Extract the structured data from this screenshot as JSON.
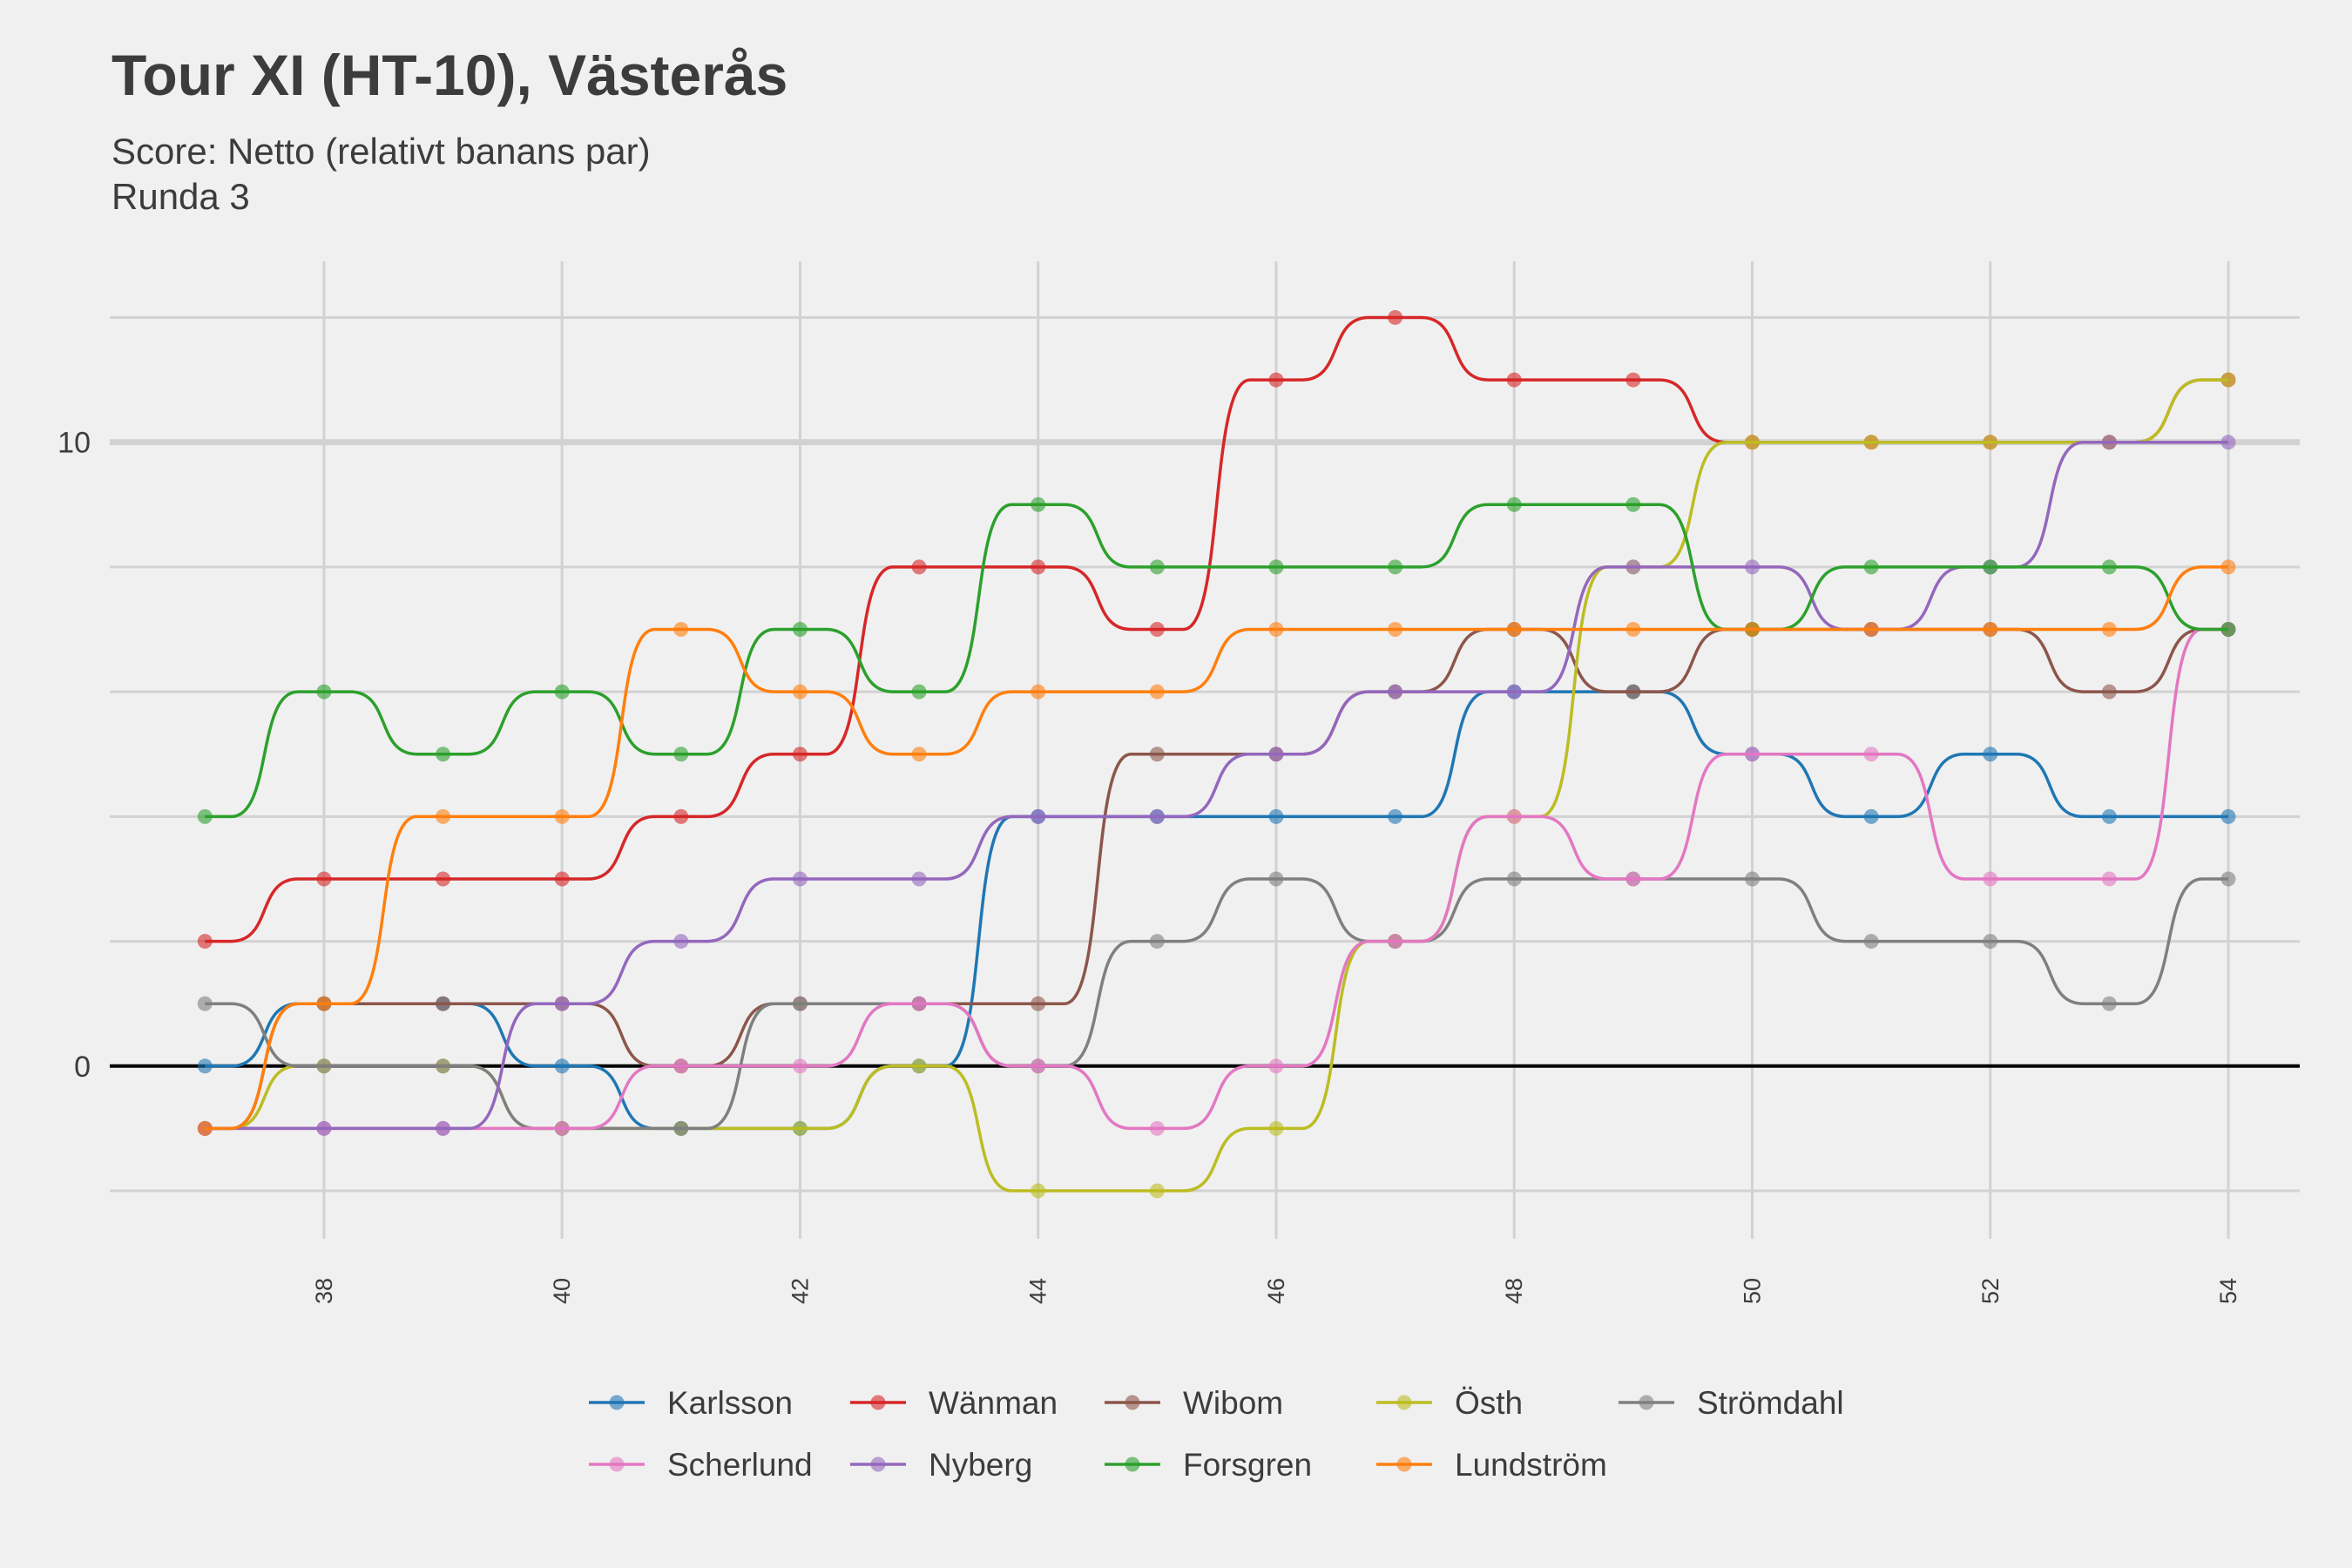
{
  "title": "Tour XI (HT-10), Västerås",
  "subtitle": [
    "Score: Netto (relativt banans par)",
    "Runda 3"
  ],
  "chart_data": {
    "type": "line",
    "title": "Tour XI (HT-10), Västerås",
    "subtitle": "Score: Netto (relativt banans par) / Runda 3",
    "xlabel": "",
    "ylabel": "",
    "x": [
      37,
      38,
      39,
      40,
      41,
      42,
      43,
      44,
      45,
      46,
      47,
      48,
      49,
      50,
      51,
      52,
      53,
      54
    ],
    "xlim": [
      36.2,
      54.6
    ],
    "ylim": [
      -2.6,
      12.9
    ],
    "x_ticks": [
      38,
      40,
      42,
      44,
      46,
      48,
      50,
      52,
      54
    ],
    "y_ticks": [
      0,
      10
    ],
    "gridlines_y": [
      -2,
      0,
      2,
      4,
      6,
      8,
      10,
      12
    ],
    "grid": true,
    "legend_position": "bottom",
    "series": [
      {
        "name": "Karlsson",
        "color": "#1f77b4",
        "values": [
          0,
          1,
          1,
          0,
          -1,
          -1,
          0,
          4,
          4,
          4,
          4,
          6,
          6,
          5,
          4,
          5,
          4,
          4
        ]
      },
      {
        "name": "Wänman",
        "color": "#d62728",
        "values": [
          2,
          3,
          3,
          3,
          4,
          5,
          8,
          8,
          7,
          11,
          12,
          11,
          11,
          10,
          10,
          10,
          10,
          11
        ]
      },
      {
        "name": "Wibom",
        "color": "#8c564b",
        "values": [
          -1,
          1,
          1,
          1,
          0,
          1,
          1,
          1,
          5,
          5,
          6,
          7,
          6,
          7,
          7,
          7,
          6,
          7
        ]
      },
      {
        "name": "Östh",
        "color": "#bcbd22",
        "values": [
          -1,
          0,
          0,
          -1,
          -1,
          -1,
          0,
          -2,
          -2,
          -1,
          2,
          4,
          8,
          10,
          10,
          10,
          10,
          11
        ]
      },
      {
        "name": "Strömdahl",
        "color": "#7f7f7f",
        "values": [
          1,
          0,
          0,
          -1,
          -1,
          1,
          1,
          0,
          2,
          3,
          2,
          3,
          3,
          3,
          2,
          2,
          1,
          3
        ]
      },
      {
        "name": "Scherlund",
        "color": "#e377c2",
        "values": [
          -1,
          -1,
          -1,
          -1,
          0,
          0,
          1,
          0,
          -1,
          0,
          2,
          4,
          3,
          5,
          5,
          3,
          3,
          7
        ]
      },
      {
        "name": "Nyberg",
        "color": "#9467bd",
        "values": [
          -1,
          -1,
          -1,
          1,
          2,
          3,
          3,
          4,
          4,
          5,
          6,
          6,
          8,
          8,
          7,
          8,
          10,
          10
        ]
      },
      {
        "name": "Forsgren",
        "color": "#2ca02c",
        "values": [
          4,
          6,
          5,
          6,
          5,
          7,
          6,
          9,
          8,
          8,
          8,
          9,
          9,
          7,
          8,
          8,
          8,
          7
        ]
      },
      {
        "name": "Lundström",
        "color": "#ff7f0e",
        "values": [
          -1,
          1,
          4,
          4,
          7,
          6,
          5,
          6,
          6,
          7,
          7,
          7,
          7,
          7,
          7,
          7,
          7,
          8
        ]
      }
    ]
  }
}
